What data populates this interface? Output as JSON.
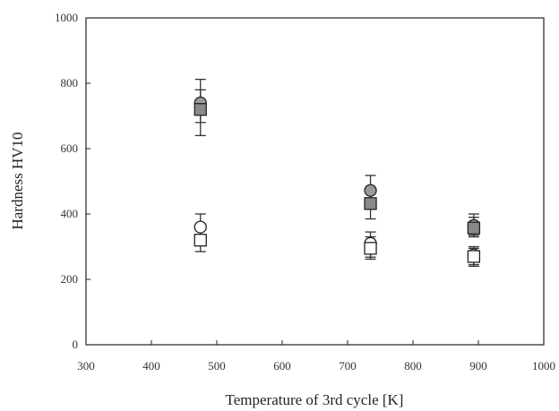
{
  "chart_data": {
    "type": "scatter",
    "title": "",
    "xlabel": "Temperature of 3rd cycle [K]",
    "ylabel": "Hardness HV10",
    "xlim": [
      300,
      1000
    ],
    "ylim": [
      0,
      1000
    ],
    "xticks": [
      300,
      400,
      500,
      600,
      700,
      800,
      900,
      1000
    ],
    "yticks": [
      0,
      200,
      400,
      600,
      800,
      1000
    ],
    "grid": false,
    "legend": "none",
    "series": [
      {
        "marker": "circle",
        "fill": "#9a9a9a",
        "points": [
          {
            "x": 475,
            "y": 740,
            "err_low": 680,
            "err_high": 812
          },
          {
            "x": 735,
            "y": 472,
            "err_low": 430,
            "err_high": 518
          },
          {
            "x": 893,
            "y": 365,
            "err_low": 335,
            "err_high": 400
          }
        ]
      },
      {
        "marker": "square",
        "fill": "#8a8a8a",
        "points": [
          {
            "x": 475,
            "y": 720,
            "err_low": 640,
            "err_high": 780
          },
          {
            "x": 735,
            "y": 432,
            "err_low": 385,
            "err_high": 478
          },
          {
            "x": 893,
            "y": 357,
            "err_low": 330,
            "err_high": 390
          }
        ]
      },
      {
        "marker": "circle",
        "fill": "#ffffff",
        "points": [
          {
            "x": 475,
            "y": 360,
            "err_low": 325,
            "err_high": 400
          },
          {
            "x": 735,
            "y": 310,
            "err_low": 268,
            "err_high": 345
          },
          {
            "x": 893,
            "y": 275,
            "err_low": 245,
            "err_high": 300
          }
        ]
      },
      {
        "marker": "square",
        "fill": "#ffffff",
        "points": [
          {
            "x": 475,
            "y": 320,
            "err_low": 285,
            "err_high": 355
          },
          {
            "x": 735,
            "y": 295,
            "err_low": 262,
            "err_high": 330
          },
          {
            "x": 893,
            "y": 270,
            "err_low": 240,
            "err_high": 295
          }
        ]
      }
    ]
  }
}
